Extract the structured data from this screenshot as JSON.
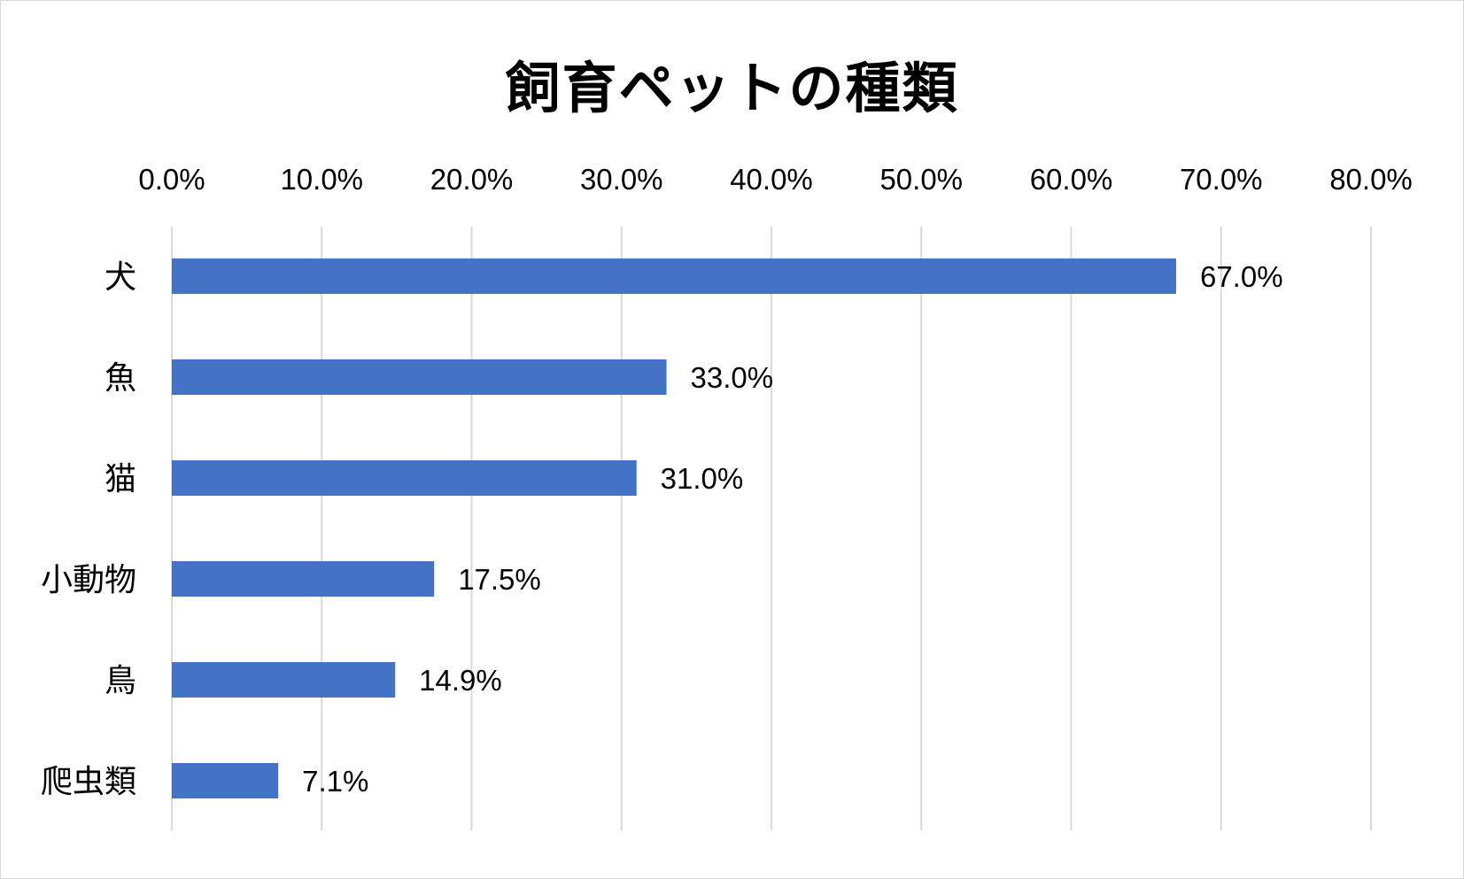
{
  "chart_data": {
    "type": "bar",
    "orientation": "horizontal",
    "title": "飼育ペットの種類",
    "categories": [
      "犬",
      "魚",
      "猫",
      "小動物",
      "鳥",
      "爬虫類"
    ],
    "values": [
      67.0,
      33.0,
      31.0,
      17.5,
      14.9,
      7.1
    ],
    "data_labels": [
      "67.0%",
      "33.0%",
      "31.0%",
      "17.5%",
      "14.9%",
      "7.1%"
    ],
    "xlim": [
      0,
      80
    ],
    "x_ticks": [
      0,
      10,
      20,
      30,
      40,
      50,
      60,
      70,
      80
    ],
    "x_tick_labels": [
      "0.0%",
      "10.0%",
      "20.0%",
      "30.0%",
      "40.0%",
      "50.0%",
      "60.0%",
      "70.0%",
      "80.0%"
    ],
    "x_axis_position": "top",
    "grid": true,
    "legend": "none",
    "bar_color": "#4472C4",
    "grid_color": "#d9d9d9"
  }
}
